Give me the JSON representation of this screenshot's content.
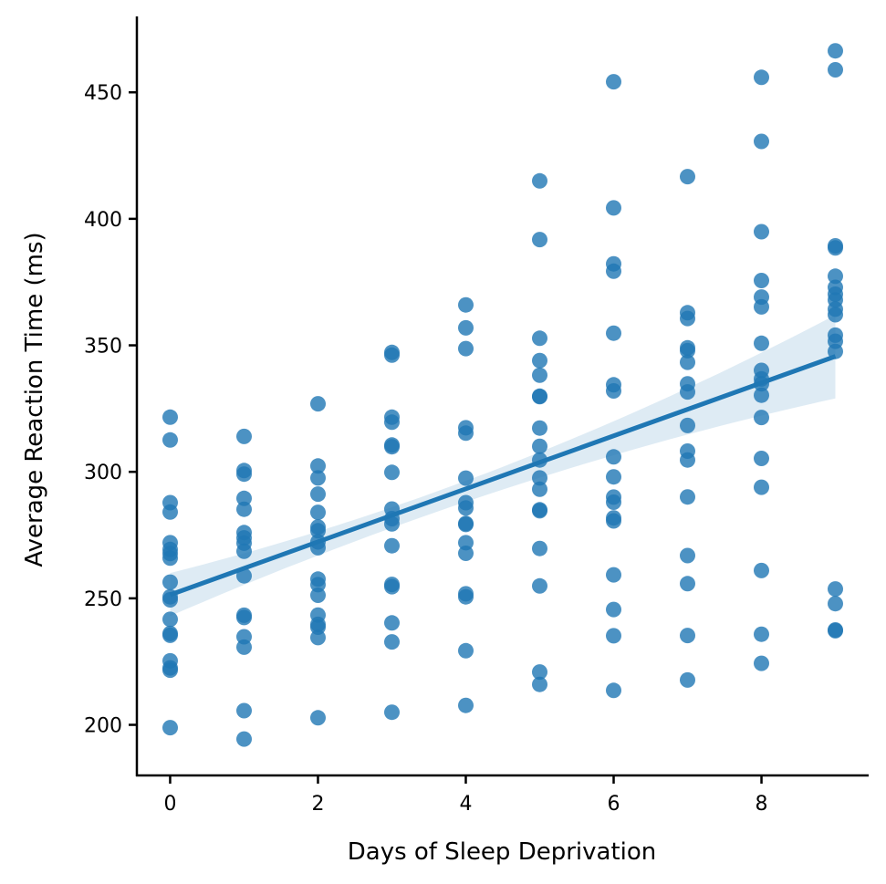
{
  "chart_data": {
    "type": "scatter",
    "title": "",
    "xlabel": "Days of Sleep Deprivation",
    "ylabel": "Average Reaction Time (ms)",
    "xlim": [
      -0.45,
      9.45
    ],
    "ylim": [
      180,
      480
    ],
    "xticks": [
      0,
      2,
      4,
      6,
      8
    ],
    "yticks": [
      200,
      250,
      300,
      350,
      400,
      450
    ],
    "grid": false,
    "legend": "none",
    "color": "#1f77b4",
    "regression": {
      "x_range": [
        0,
        9
      ],
      "intercept": 251.4,
      "slope": 10.47,
      "ci_lower_at": {
        "0": 243,
        "4.5": 293,
        "9": 329
      },
      "ci_upper_at": {
        "0": 260,
        "4.5": 302,
        "9": 362
      }
    },
    "series": [
      {
        "points": [
          [
            0,
            321.6
          ],
          [
            0,
            312.6
          ],
          [
            0,
            287.8
          ],
          [
            0,
            284.1
          ],
          [
            0,
            272.0
          ],
          [
            0,
            269.3
          ],
          [
            0,
            267.7
          ],
          [
            0,
            265.9
          ],
          [
            0,
            256.4
          ],
          [
            0,
            250.6
          ],
          [
            0,
            249.4
          ],
          [
            0,
            241.7
          ],
          [
            0,
            236.1
          ],
          [
            0,
            235.4
          ],
          [
            0,
            225.3
          ],
          [
            0,
            222.5
          ],
          [
            0,
            221.6
          ],
          [
            0,
            198.9
          ],
          [
            1,
            314.0
          ],
          [
            1,
            300.5
          ],
          [
            1,
            299.1
          ],
          [
            1,
            289.5
          ],
          [
            1,
            285.2
          ],
          [
            1,
            276.0
          ],
          [
            1,
            273.9
          ],
          [
            1,
            271.8
          ],
          [
            1,
            268.6
          ],
          [
            1,
            258.9
          ],
          [
            1,
            243.3
          ],
          [
            1,
            242.4
          ],
          [
            1,
            234.8
          ],
          [
            1,
            230.7
          ],
          [
            1,
            205.6
          ],
          [
            1,
            194.4
          ],
          [
            2,
            326.9
          ],
          [
            2,
            302.3
          ],
          [
            2,
            297.6
          ],
          [
            2,
            291.2
          ],
          [
            2,
            284.0
          ],
          [
            2,
            278.2
          ],
          [
            2,
            276.7
          ],
          [
            2,
            272.3
          ],
          [
            2,
            270.0
          ],
          [
            2,
            257.6
          ],
          [
            2,
            255.4
          ],
          [
            2,
            251.2
          ],
          [
            2,
            243.4
          ],
          [
            2,
            239.7
          ],
          [
            2,
            238.6
          ],
          [
            2,
            234.5
          ],
          [
            2,
            202.8
          ],
          [
            3,
            347.2
          ],
          [
            3,
            346.1
          ],
          [
            3,
            321.6
          ],
          [
            3,
            319.6
          ],
          [
            3,
            310.6
          ],
          [
            3,
            309.9
          ],
          [
            3,
            299.8
          ],
          [
            3,
            285.3
          ],
          [
            3,
            281.5
          ],
          [
            3,
            279.4
          ],
          [
            3,
            270.8
          ],
          [
            3,
            255.5
          ],
          [
            3,
            254.6
          ],
          [
            3,
            240.3
          ],
          [
            3,
            232.8
          ],
          [
            3,
            205.0
          ],
          [
            4,
            366.0
          ],
          [
            4,
            356.9
          ],
          [
            4,
            348.7
          ],
          [
            4,
            317.4
          ],
          [
            4,
            315.3
          ],
          [
            4,
            297.5
          ],
          [
            4,
            287.8
          ],
          [
            4,
            285.7
          ],
          [
            4,
            279.6
          ],
          [
            4,
            279.2
          ],
          [
            4,
            272.0
          ],
          [
            4,
            267.8
          ],
          [
            4,
            251.8
          ],
          [
            4,
            250.6
          ],
          [
            4,
            229.3
          ],
          [
            4,
            207.7
          ],
          [
            5,
            415.0
          ],
          [
            5,
            391.8
          ],
          [
            5,
            352.8
          ],
          [
            5,
            344.0
          ],
          [
            5,
            338.2
          ],
          [
            5,
            329.9
          ],
          [
            5,
            329.7
          ],
          [
            5,
            317.3
          ],
          [
            5,
            310.1
          ],
          [
            5,
            304.7
          ],
          [
            5,
            297.6
          ],
          [
            5,
            293.1
          ],
          [
            5,
            285.0
          ],
          [
            5,
            284.6
          ],
          [
            5,
            269.7
          ],
          [
            5,
            254.9
          ],
          [
            5,
            220.9
          ],
          [
            5,
            216.0
          ],
          [
            6,
            454.2
          ],
          [
            6,
            404.3
          ],
          [
            6,
            382.2
          ],
          [
            6,
            379.3
          ],
          [
            6,
            354.8
          ],
          [
            6,
            334.4
          ],
          [
            6,
            332.0
          ],
          [
            6,
            305.9
          ],
          [
            6,
            298.0
          ],
          [
            6,
            290.0
          ],
          [
            6,
            288.0
          ],
          [
            6,
            281.8
          ],
          [
            6,
            280.6
          ],
          [
            6,
            259.3
          ],
          [
            6,
            245.6
          ],
          [
            6,
            235.2
          ],
          [
            6,
            213.6
          ],
          [
            7,
            416.7
          ],
          [
            7,
            362.9
          ],
          [
            7,
            360.6
          ],
          [
            7,
            349.0
          ],
          [
            7,
            347.9
          ],
          [
            7,
            343.3
          ],
          [
            7,
            334.8
          ],
          [
            7,
            331.6
          ],
          [
            7,
            318.3
          ],
          [
            7,
            308.2
          ],
          [
            7,
            304.7
          ],
          [
            7,
            290.1
          ],
          [
            7,
            266.9
          ],
          [
            7,
            255.8
          ],
          [
            7,
            235.3
          ],
          [
            7,
            217.7
          ],
          [
            8,
            455.9
          ],
          [
            8,
            430.6
          ],
          [
            8,
            394.9
          ],
          [
            8,
            375.6
          ],
          [
            8,
            369.1
          ],
          [
            8,
            365.2
          ],
          [
            8,
            350.8
          ],
          [
            8,
            340.1
          ],
          [
            8,
            336.7
          ],
          [
            8,
            334.8
          ],
          [
            8,
            330.3
          ],
          [
            8,
            321.5
          ],
          [
            8,
            305.3
          ],
          [
            8,
            293.9
          ],
          [
            8,
            261.0
          ],
          [
            8,
            235.8
          ],
          [
            8,
            224.3
          ],
          [
            9,
            466.4
          ],
          [
            9,
            458.9
          ],
          [
            9,
            389.3
          ],
          [
            9,
            388.5
          ],
          [
            9,
            377.3
          ],
          [
            9,
            372.9
          ],
          [
            9,
            370.2
          ],
          [
            9,
            367.9
          ],
          [
            9,
            364.3
          ],
          [
            9,
            362.1
          ],
          [
            9,
            354.0
          ],
          [
            9,
            351.6
          ],
          [
            9,
            347.6
          ],
          [
            9,
            253.7
          ],
          [
            9,
            247.9
          ],
          [
            9,
            237.5
          ],
          [
            9,
            237.2
          ]
        ]
      }
    ]
  }
}
